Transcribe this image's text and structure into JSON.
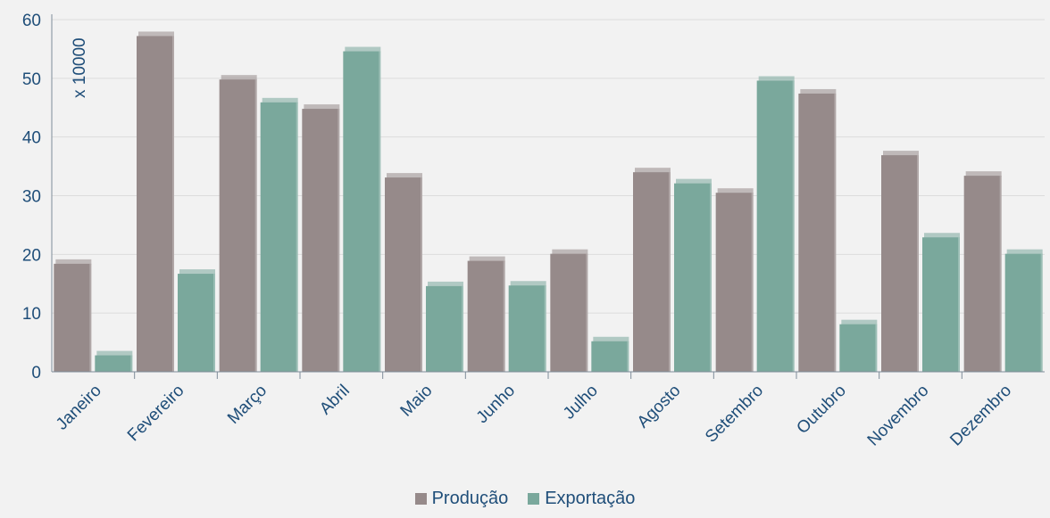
{
  "chart_data": {
    "type": "bar",
    "title": "",
    "xlabel": "",
    "ylabel": "",
    "unit_label": "x 10000",
    "categories": [
      "Janeiro",
      "Fevereiro",
      "Março",
      "Abril",
      "Maio",
      "Junho",
      "Julho",
      "Agosto",
      "Setembro",
      "Outubro",
      "Novembro",
      "Dezembro"
    ],
    "series": [
      {
        "name": "Produção",
        "color": "#968a8a",
        "values": [
          18.4,
          57.2,
          49.8,
          44.8,
          33.1,
          18.9,
          20.1,
          34.0,
          30.5,
          47.4,
          36.9,
          33.4
        ]
      },
      {
        "name": "Exportação",
        "color": "#7aa89c",
        "values": [
          2.8,
          16.7,
          45.9,
          54.6,
          14.6,
          14.7,
          5.2,
          32.1,
          49.6,
          8.1,
          22.9,
          20.1
        ]
      }
    ],
    "ylim": [
      0,
      60
    ],
    "yticks": [
      "0",
      "10",
      "20",
      "30",
      "40",
      "50",
      "60"
    ],
    "grid": true,
    "legend_position": "bottom"
  }
}
